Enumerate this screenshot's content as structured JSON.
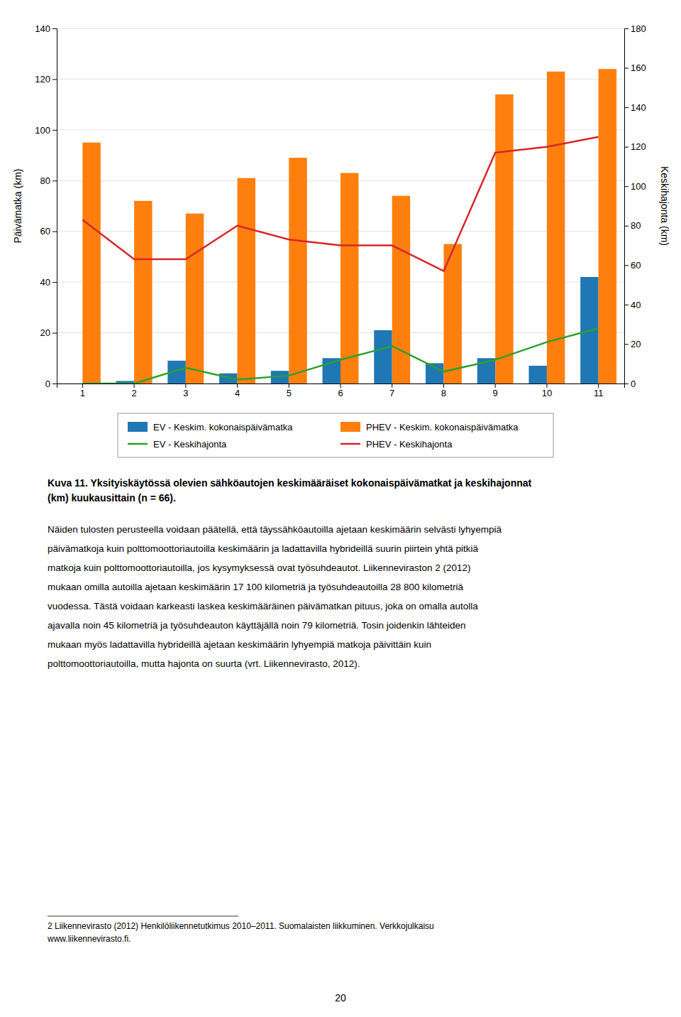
{
  "chart_data": {
    "type": "bar",
    "categories": [
      1,
      2,
      3,
      4,
      5,
      6,
      7,
      8,
      9,
      10,
      11
    ],
    "series": [
      {
        "name": "EV - Keskim. kokonaispäivämatka",
        "type": "bar",
        "values": [
          0,
          1,
          9,
          4,
          5,
          10,
          21,
          8,
          10,
          7,
          42
        ]
      },
      {
        "name": "PHEV - Keskim. kokonaispäivämatka",
        "type": "bar",
        "values": [
          95,
          72,
          67,
          81,
          89,
          83,
          74,
          55,
          114,
          123,
          124
        ]
      },
      {
        "name": "EV - Keskihajonta",
        "type": "line",
        "axis": "y2",
        "values": [
          0,
          0,
          8,
          2,
          4,
          12,
          19,
          6,
          12,
          21,
          28
        ]
      },
      {
        "name": "PHEV - Keskihajonta",
        "type": "line",
        "axis": "y2",
        "values": [
          83,
          63,
          63,
          80,
          73,
          70,
          70,
          57,
          117,
          120,
          125
        ]
      }
    ],
    "ylabel": "Päivämatka (km)",
    "y2label": "Keskihajonta (km)",
    "ylim": [
      0,
      140
    ],
    "yticks": [
      0,
      20,
      40,
      60,
      80,
      100,
      120,
      140
    ],
    "y2lim": [
      0,
      180
    ],
    "y2ticks": [
      0,
      20,
      40,
      60,
      80,
      100,
      120,
      140,
      160,
      180
    ],
    "grid": true,
    "legend": "bottom"
  },
  "caption": [
    "Kuva 11. Yksityiskäytössä olevien sähköautojen keskimääräiset kokonaispäivämatkat ja keskihajonnat",
    "(km) kuukausittain (n = 66)."
  ],
  "body": [
    "Näiden tulosten perusteella voidaan päätellä, että täyssähköautoilla ajetaan keskimäärin selvästi lyhyempiä",
    "päivämatkoja kuin polttomoottoriautoilla keskimäärin ja ladattavilla hybrideillä suurin piirtein yhtä pitkiä",
    "matkoja kuin polttomoottoriautoilla, jos kysymyksessä ovat työsuhdeautot. Liikenneviraston 2 (2012)",
    "mukaan omilla autoilla ajetaan keskimäärin 17 100 kilometriä ja työsuhdeautoilla 28 800 kilometriä",
    "vuodessa. Tästä voidaan karkeasti laskea keskimääräinen päivämatkan pituus, joka on omalla autolla",
    "ajavalla noin 45 kilometriä ja työsuhdeauton käyttäjällä noin 79 kilometriä. Tosin joidenkin lähteiden",
    "mukaan myös ladattavilla hybrideillä ajetaan keskimäärin lyhyempiä matkoja päivittäin kuin",
    "polttomoottoriautoilla, mutta hajonta on suurta (vrt. Liikennevirasto, 2012)."
  ],
  "footnotes": [
    "2 Liikennevirasto (2012) Henkilöliikennetutkimus 2010–2011. Suomalaisten liikkuminen. Verkkojulkaisu",
    "www.liikennevirasto.fi."
  ],
  "page_number": "20"
}
